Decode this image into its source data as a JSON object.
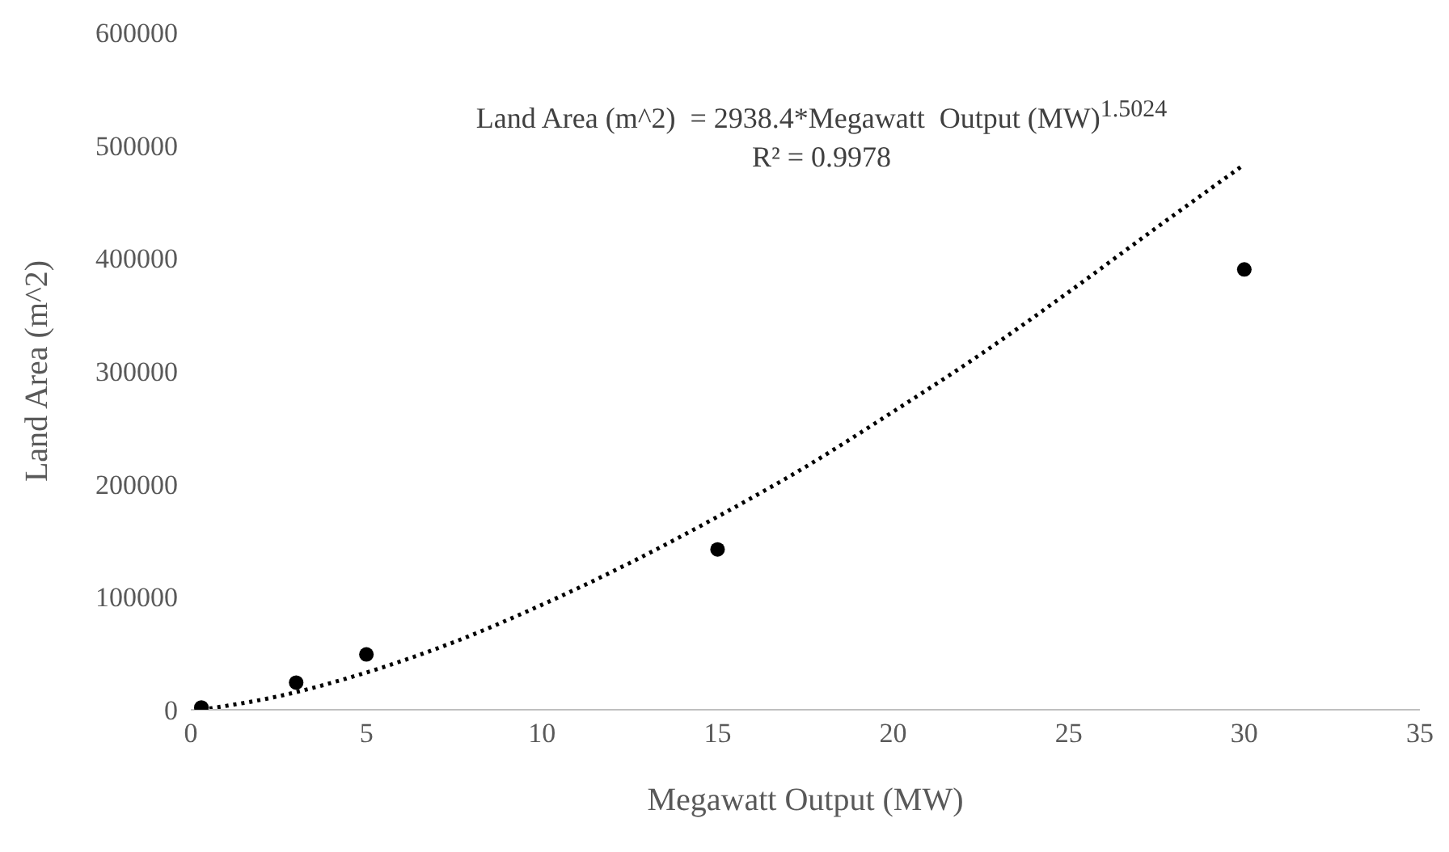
{
  "chart_data": {
    "type": "scatter",
    "xlabel": "Megawatt  Output (MW)",
    "ylabel": "Land Area (m^2)",
    "xlim": [
      0,
      35
    ],
    "xticks": [
      0,
      5,
      10,
      15,
      20,
      25,
      30,
      35
    ],
    "ylim": [
      0,
      600000
    ],
    "yticks": [
      0,
      100000,
      200000,
      300000,
      400000,
      500000,
      600000
    ],
    "grid": false,
    "legend": false,
    "annotations": [
      "Land Area (m^2)  = 2938.4*Megawatt  Output (MW)$^{1.5024}$",
      "R² = 0.9978"
    ],
    "series": [
      {
        "type": "scatter",
        "color": "#000000",
        "marker": "circle",
        "x": [
          0.3,
          3,
          5,
          15,
          30
        ],
        "values": [
          2000,
          24000,
          49000,
          142000,
          390000
        ]
      },
      {
        "type": "line",
        "color": "#000000",
        "marker": "none",
        "line_style": "dotted",
        "x": [
          0.3,
          2.5,
          5,
          7.5,
          10,
          12.5,
          15,
          17.5,
          20,
          22.5,
          25,
          27.5,
          30
        ],
        "values": [
          0,
          12000,
          33000,
          60000,
          93000,
          130000,
          171000,
          215000,
          264000,
          315000,
          370000,
          427000,
          483000
        ]
      }
    ]
  }
}
